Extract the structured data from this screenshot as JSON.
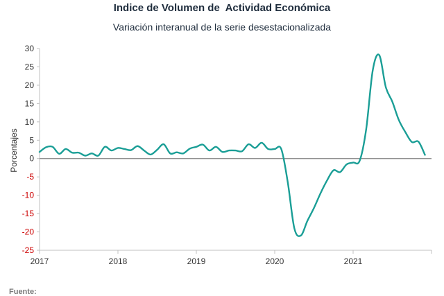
{
  "chart_data": {
    "type": "line",
    "title": "Indice de Volumen de  Actividad Económica",
    "subtitle": "Variación interanual de la serie desestacionalizada",
    "ylabel": "Porcentajes",
    "xlabel": "",
    "ylim": [
      -25,
      30
    ],
    "y_ticks": [
      -25,
      -20,
      -15,
      -10,
      -5,
      0,
      5,
      10,
      15,
      20,
      25,
      30
    ],
    "x_ticks": [
      "2017",
      "2018",
      "2019",
      "2020",
      "2021"
    ],
    "grid": false,
    "colors": {
      "line": "#1a9e96",
      "zero_line": "#808080",
      "axis": "#c0c0c0",
      "negative_tick": "#cc0000",
      "positive_tick": "#333333"
    },
    "series": [
      {
        "values": [
          [
            "2017-01",
            1.8
          ],
          [
            "2017-02",
            3.1
          ],
          [
            "2017-03",
            3.2
          ],
          [
            "2017-04",
            1.3
          ],
          [
            "2017-05",
            2.6
          ],
          [
            "2017-06",
            1.6
          ],
          [
            "2017-07",
            1.6
          ],
          [
            "2017-08",
            0.8
          ],
          [
            "2017-09",
            1.4
          ],
          [
            "2017-10",
            0.8
          ],
          [
            "2017-11",
            3.2
          ],
          [
            "2017-12",
            2.2
          ],
          [
            "2018-01",
            2.9
          ],
          [
            "2018-02",
            2.6
          ],
          [
            "2018-03",
            2.3
          ],
          [
            "2018-04",
            3.4
          ],
          [
            "2018-05",
            2.2
          ],
          [
            "2018-06",
            1.1
          ],
          [
            "2018-07",
            2.4
          ],
          [
            "2018-08",
            3.9
          ],
          [
            "2018-09",
            1.4
          ],
          [
            "2018-10",
            1.7
          ],
          [
            "2018-11",
            1.4
          ],
          [
            "2018-12",
            2.7
          ],
          [
            "2019-01",
            3.2
          ],
          [
            "2019-02",
            3.8
          ],
          [
            "2019-03",
            2.2
          ],
          [
            "2019-04",
            3.2
          ],
          [
            "2019-05",
            1.8
          ],
          [
            "2019-06",
            2.2
          ],
          [
            "2019-07",
            2.2
          ],
          [
            "2019-08",
            2.0
          ],
          [
            "2019-09",
            3.9
          ],
          [
            "2019-10",
            2.9
          ],
          [
            "2019-11",
            4.3
          ],
          [
            "2019-12",
            2.6
          ],
          [
            "2020-01",
            2.6
          ],
          [
            "2020-02",
            2.6
          ],
          [
            "2020-03",
            -6.5
          ],
          [
            "2020-04",
            -19.0
          ],
          [
            "2020-05",
            -21.0
          ],
          [
            "2020-06",
            -17.0
          ],
          [
            "2020-07",
            -13.5
          ],
          [
            "2020-08",
            -9.5
          ],
          [
            "2020-09",
            -6.0
          ],
          [
            "2020-10",
            -3.2
          ],
          [
            "2020-11",
            -3.7
          ],
          [
            "2020-12",
            -1.6
          ],
          [
            "2021-01",
            -1.1
          ],
          [
            "2021-02",
            -0.6
          ],
          [
            "2021-03",
            8.0
          ],
          [
            "2021-04",
            24.0
          ],
          [
            "2021-05",
            28.2
          ],
          [
            "2021-06",
            19.5
          ],
          [
            "2021-07",
            15.5
          ],
          [
            "2021-08",
            10.5
          ],
          [
            "2021-09",
            7.2
          ],
          [
            "2021-10",
            4.5
          ],
          [
            "2021-11",
            4.6
          ],
          [
            "2021-12",
            1.0
          ]
        ]
      }
    ],
    "footer": "Fuente:"
  }
}
